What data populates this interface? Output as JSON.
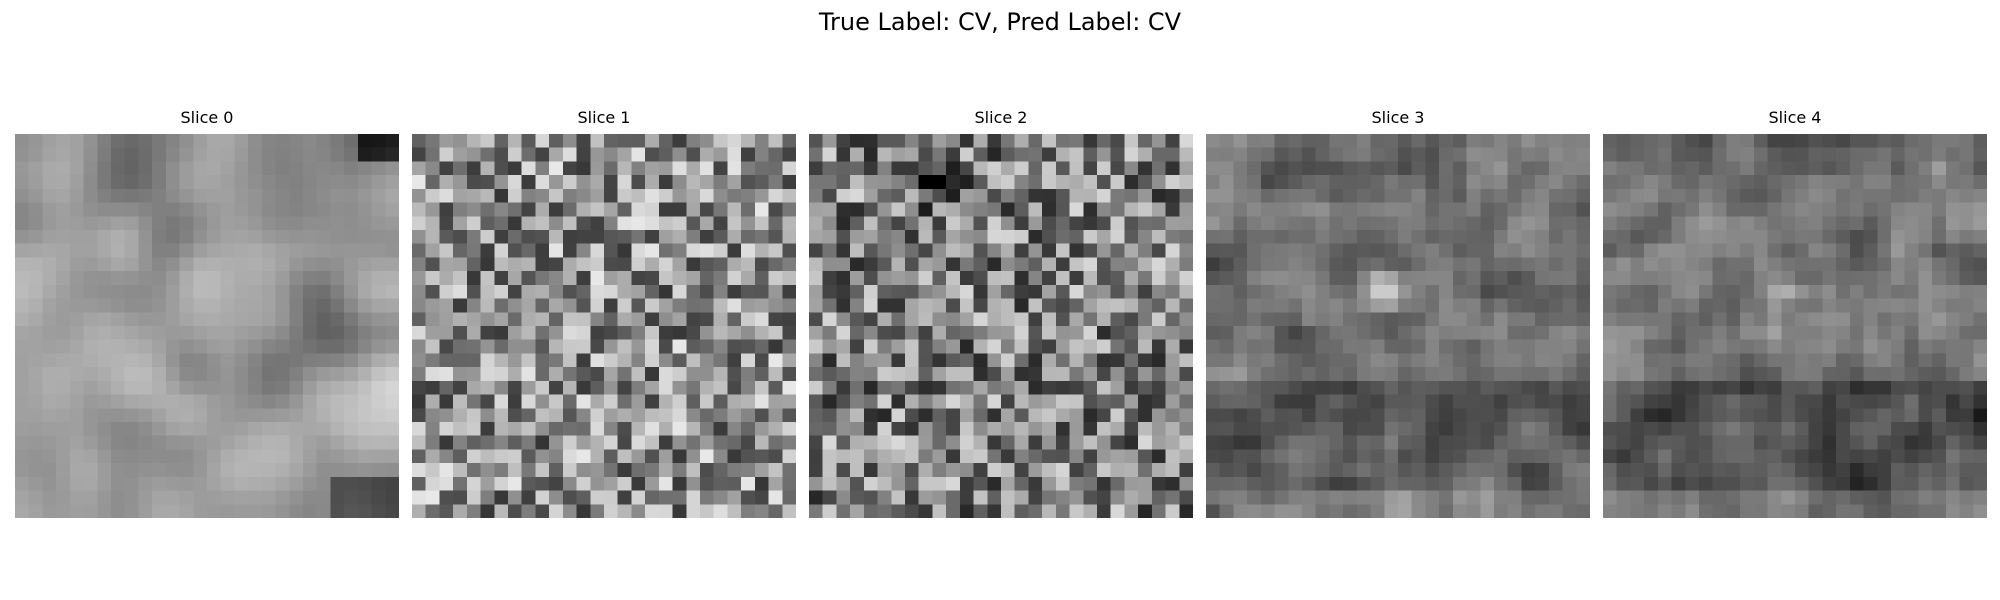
{
  "figure": {
    "title": "True Label: CV, Pred Label: CV",
    "true_label": "CV",
    "pred_label": "CV",
    "colormap": "gray",
    "slices": [
      {
        "label": "Slice 0",
        "character": "smooth mid-light gray texture, bright blobs upper-left and right, darker bottom-right corner",
        "bias": 0.58,
        "noise": 0.1,
        "smooth": 3,
        "seed": 11
      },
      {
        "label": "Slice 1",
        "character": "fine-grained speckle noise, medium gray with light and dark pixels",
        "bias": 0.56,
        "noise": 0.22,
        "smooth": 0,
        "seed": 23
      },
      {
        "label": "Slice 2",
        "character": "fine-grained speckle noise, slightly darker, dark patch near top",
        "bias": 0.5,
        "noise": 0.22,
        "smooth": 0,
        "seed": 37
      },
      {
        "label": "Slice 3",
        "character": "medium texture, bright spot center, darker band in lower third",
        "bias": 0.45,
        "noise": 0.16,
        "smooth": 1,
        "seed": 51
      },
      {
        "label": "Slice 4",
        "character": "medium texture, bright spot center, darker band in lower third",
        "bias": 0.46,
        "noise": 0.16,
        "smooth": 1,
        "seed": 53
      }
    ]
  }
}
